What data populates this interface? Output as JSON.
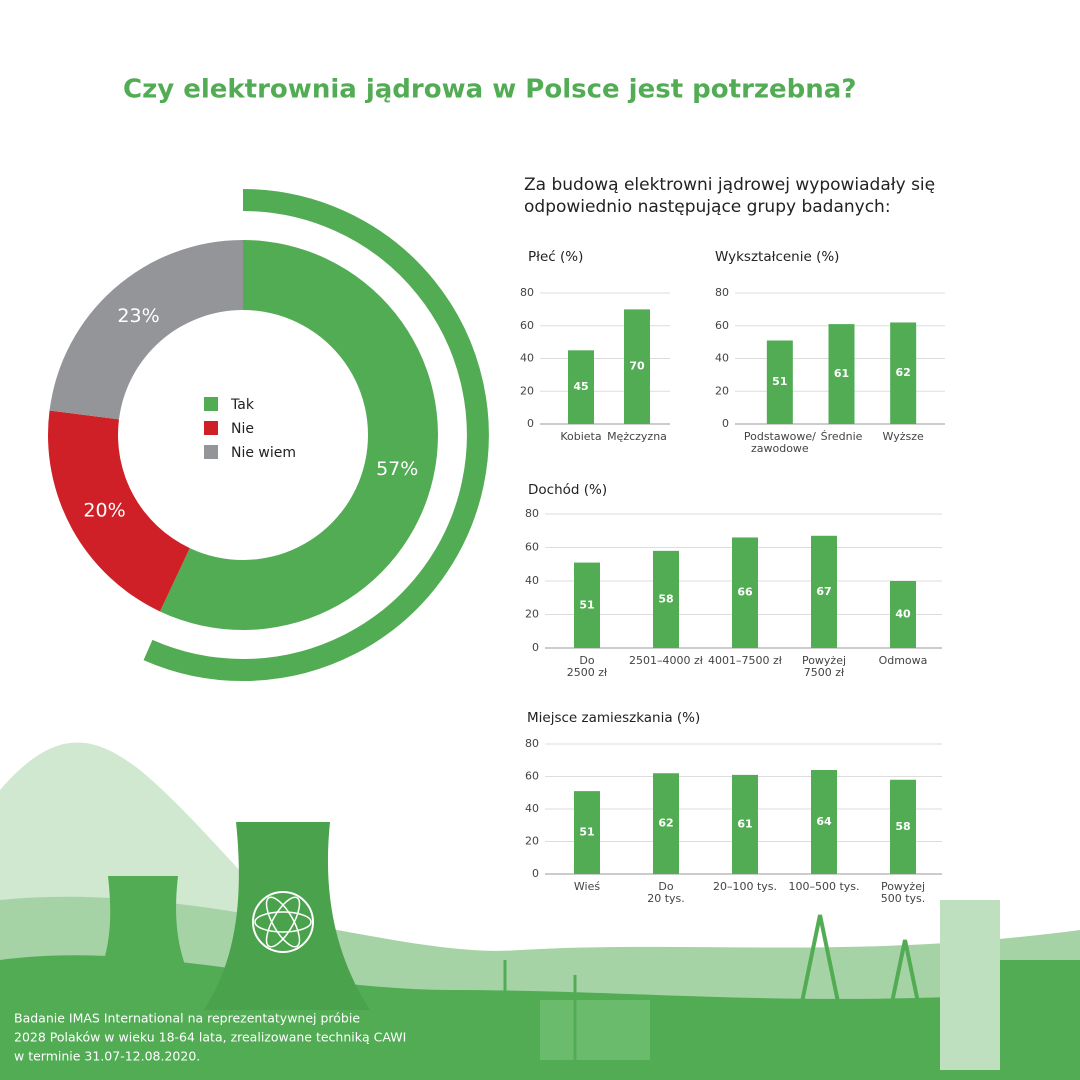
{
  "title": "Czy elektrownia jądrowa w Polsce jest potrzebna?",
  "intro": [
    "Za budową elektrowni jądrowej wypowiadały się",
    "odpowiednio następujące grupy badanych:"
  ],
  "footer": [
    "Badanie IMAS International na reprezentatywnej próbie",
    "2028 Polaków w wieku 18-64 lata, zrealizowane techniką CAWI",
    "w terminie 31.07-12.08.2020."
  ],
  "chart_data": [
    {
      "type": "pie",
      "donut": true,
      "categories": [
        "Tak",
        "Nie",
        "Nie wiem"
      ],
      "values": [
        57,
        20,
        23
      ],
      "value_labels": [
        "57%",
        "20%",
        "23%"
      ],
      "colors": [
        "#52ac54",
        "#d02027",
        "#939598"
      ],
      "legend": "center"
    },
    {
      "type": "bar",
      "title": "Płeć (%)",
      "categories": [
        "Kobieta",
        "Mężczyzna"
      ],
      "values": [
        45,
        70
      ],
      "color": "#52ac54",
      "ylim": [
        0,
        80
      ],
      "yticks": [
        0,
        20,
        40,
        60,
        80
      ],
      "grid": true
    },
    {
      "type": "bar",
      "title": "Wykształcenie (%)",
      "categories": [
        "Podstawowe/\nzawodowe",
        "Średnie",
        "Wyższe"
      ],
      "values": [
        51,
        61,
        62
      ],
      "color": "#52ac54",
      "ylim": [
        0,
        80
      ],
      "yticks": [
        0,
        20,
        40,
        60,
        80
      ],
      "grid": true
    },
    {
      "type": "bar",
      "title": "Dochód (%)",
      "categories": [
        "Do\n2500 zł",
        "2501–4000 zł",
        "4001–7500 zł",
        "Powyżej\n7500 zł",
        "Odmowa"
      ],
      "values": [
        51,
        58,
        66,
        67,
        40
      ],
      "color": "#52ac54",
      "ylim": [
        0,
        80
      ],
      "yticks": [
        0,
        20,
        40,
        60,
        80
      ],
      "grid": true
    },
    {
      "type": "bar",
      "title": "Miejsce zamieszkania (%)",
      "categories": [
        "Wieś",
        "Do\n20 tys.",
        "20–100 tys.",
        "100–500 tys.",
        "Powyżej\n500 tys."
      ],
      "values": [
        51,
        62,
        61,
        64,
        58
      ],
      "color": "#52ac54",
      "ylim": [
        0,
        80
      ],
      "yticks": [
        0,
        20,
        40,
        60,
        80
      ],
      "grid": true
    }
  ]
}
